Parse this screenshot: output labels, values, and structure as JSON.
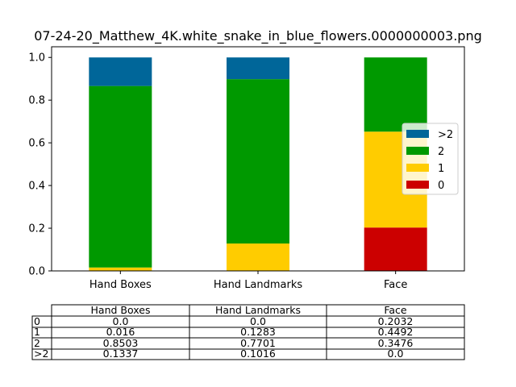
{
  "chart_data": {
    "type": "bar",
    "title": "07-24-20_Matthew_4K.white_snake_in_blue_flowers.0000000003.png",
    "categories": [
      "Hand Boxes",
      "Hand Landmarks",
      "Face"
    ],
    "ylim": [
      0,
      1.05
    ],
    "yticks": [
      "0.0",
      "0.2",
      "0.4",
      "0.6",
      "0.8",
      "1.0"
    ],
    "ytick_values": [
      0,
      0.2,
      0.4,
      0.6,
      0.8,
      1.0
    ],
    "stacked": true,
    "series": [
      {
        "name": "0",
        "color": "#cc0000",
        "values": [
          0.0,
          0.0,
          0.2032
        ]
      },
      {
        "name": "1",
        "color": "#ffcc00",
        "values": [
          0.016,
          0.1283,
          0.4492
        ]
      },
      {
        "name": "2",
        "color": "#009900",
        "values": [
          0.8503,
          0.7701,
          0.3476
        ]
      },
      {
        "name": ">2",
        "color": "#006699",
        "values": [
          0.1337,
          0.1016,
          0.0
        ]
      }
    ],
    "legend_order": [
      ">2",
      "2",
      "1",
      "0"
    ],
    "legend_placement": "right",
    "table": {
      "col_labels": [
        "Hand Boxes",
        "Hand Landmarks",
        "Face"
      ],
      "row_labels": [
        "0",
        "1",
        "2",
        ">2"
      ],
      "cells": [
        [
          "0.0",
          "0.0",
          "0.2032"
        ],
        [
          "0.016",
          "0.1283",
          "0.4492"
        ],
        [
          "0.8503",
          "0.7701",
          "0.3476"
        ],
        [
          "0.1337",
          "0.1016",
          "0.0"
        ]
      ]
    }
  }
}
